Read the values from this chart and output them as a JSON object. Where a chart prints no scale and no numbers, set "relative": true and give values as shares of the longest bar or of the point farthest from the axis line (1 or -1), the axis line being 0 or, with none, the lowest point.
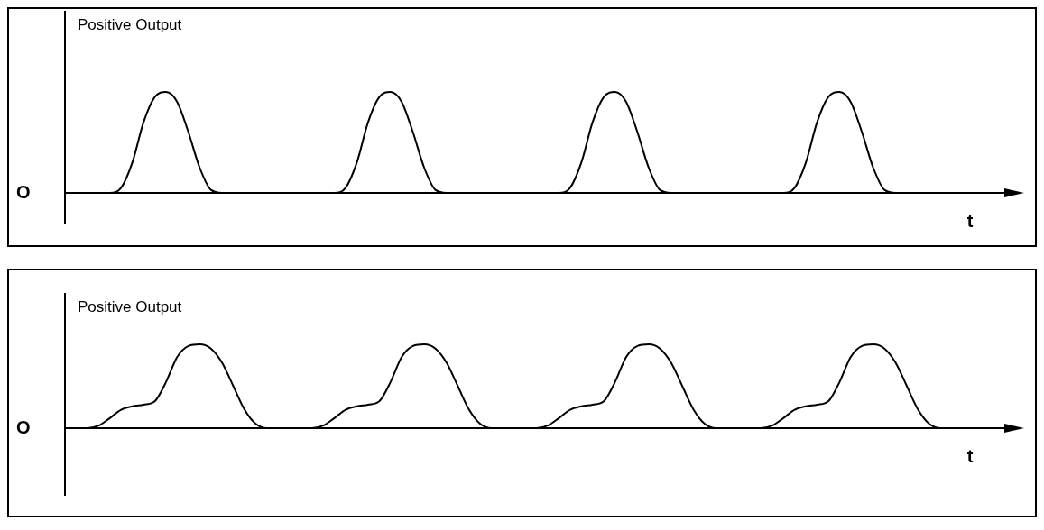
{
  "chart_data": [
    {
      "type": "line",
      "ylabel": "Positive Output",
      "xlabel": "t",
      "annotations": [
        "O"
      ],
      "relative": true,
      "legend": false,
      "marker": "none",
      "categories": [
        null,
        null,
        null,
        null,
        null,
        null,
        null,
        null,
        null,
        null,
        null,
        null,
        null,
        null,
        null,
        null,
        null,
        null,
        null,
        null,
        null,
        null,
        null,
        null,
        null,
        null,
        null,
        null,
        null,
        null,
        null,
        null,
        null,
        null,
        null,
        null,
        null,
        null,
        null,
        null,
        null,
        null,
        null,
        null,
        null,
        null,
        null,
        null,
        null,
        null,
        null,
        null,
        null,
        null,
        null,
        null,
        null,
        null,
        null,
        null,
        null,
        null,
        null,
        null,
        null,
        null,
        null,
        null,
        null,
        null,
        null,
        null,
        null,
        null,
        null,
        null,
        null,
        null,
        null,
        null,
        null,
        null,
        null,
        null,
        null
      ],
      "series": [
        {
          "color": "#000000",
          "values": [
            0,
            0,
            0,
            0,
            0,
            0.05,
            0.3,
            0.7,
            0.95,
            1,
            0.9,
            0.6,
            0.25,
            0.03,
            0,
            0,
            0,
            0,
            0,
            0,
            0,
            0,
            0,
            0,
            0,
            0.05,
            0.3,
            0.7,
            0.95,
            1,
            0.9,
            0.6,
            0.25,
            0.03,
            0,
            0,
            0,
            0,
            0,
            0,
            0,
            0,
            0,
            0,
            0,
            0.05,
            0.3,
            0.7,
            0.95,
            1,
            0.9,
            0.6,
            0.25,
            0.03,
            0,
            0,
            0,
            0,
            0,
            0,
            0,
            0,
            0,
            0,
            0,
            0.05,
            0.3,
            0.7,
            0.95,
            1,
            0.9,
            0.6,
            0.25,
            0.03,
            0,
            0,
            0,
            0,
            0,
            0,
            0,
            0,
            0,
            0,
            0
          ]
        }
      ]
    },
    {
      "type": "line",
      "ylabel": "Positive Output",
      "xlabel": "t",
      "annotations": [
        "O"
      ],
      "relative": true,
      "legend": false,
      "marker": "none",
      "categories": [
        null,
        null,
        null,
        null,
        null,
        null,
        null,
        null,
        null,
        null,
        null,
        null,
        null,
        null,
        null,
        null,
        null,
        null,
        null,
        null,
        null,
        null,
        null,
        null,
        null,
        null,
        null,
        null,
        null,
        null,
        null,
        null,
        null,
        null,
        null,
        null,
        null,
        null,
        null,
        null,
        null,
        null,
        null,
        null,
        null,
        null,
        null,
        null,
        null,
        null,
        null,
        null,
        null,
        null,
        null,
        null,
        null,
        null,
        null,
        null,
        null,
        null,
        null,
        null,
        null,
        null,
        null,
        null,
        null,
        null,
        null,
        null,
        null,
        null,
        null,
        null,
        null,
        null,
        null,
        null,
        null,
        null,
        null,
        null,
        null
      ],
      "series": [
        {
          "color": "#000000",
          "values": [
            0,
            0,
            0,
            0.03,
            0.12,
            0.22,
            0.26,
            0.28,
            0.32,
            0.55,
            0.85,
            0.98,
            1,
            0.95,
            0.78,
            0.5,
            0.22,
            0.05,
            0,
            0,
            0,
            0,
            0,
            0.03,
            0.12,
            0.22,
            0.26,
            0.28,
            0.32,
            0.55,
            0.85,
            0.98,
            1,
            0.95,
            0.78,
            0.5,
            0.22,
            0.05,
            0,
            0,
            0,
            0,
            0,
            0.03,
            0.12,
            0.22,
            0.26,
            0.28,
            0.32,
            0.55,
            0.85,
            0.98,
            1,
            0.95,
            0.78,
            0.5,
            0.22,
            0.05,
            0,
            0,
            0,
            0,
            0,
            0.03,
            0.12,
            0.22,
            0.26,
            0.28,
            0.32,
            0.55,
            0.85,
            0.98,
            1,
            0.95,
            0.78,
            0.5,
            0.22,
            0.05,
            0,
            0,
            0,
            0,
            0,
            0,
            0
          ]
        }
      ]
    }
  ]
}
